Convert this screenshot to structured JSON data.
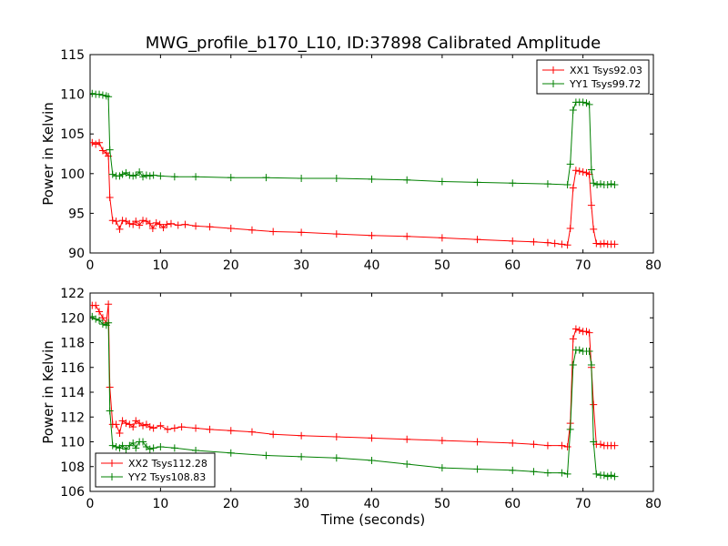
{
  "figure": {
    "title": "MWG_profile_b170_L10, ID:37898 Calibrated Amplitude",
    "xlabel": "Time (seconds)"
  },
  "chart_data": [
    {
      "type": "line",
      "ylabel": "Power in Kelvin",
      "xlim": [
        0,
        80
      ],
      "ylim": [
        90,
        115
      ],
      "xticks": [
        "0",
        "10",
        "20",
        "30",
        "40",
        "50",
        "60",
        "70",
        "80"
      ],
      "yticks": [
        "90",
        "95",
        "100",
        "105",
        "110",
        "115"
      ],
      "grid": false,
      "legend_position": "top-right",
      "series": [
        {
          "name": "XX1 Tsys92.03",
          "color": "#ff0000",
          "marker": "+",
          "points": [
            [
              0.3,
              103.9
            ],
            [
              0.8,
              103.7
            ],
            [
              1.3,
              103.9
            ],
            [
              1.8,
              102.9
            ],
            [
              2.3,
              102.6
            ],
            [
              2.6,
              102.2
            ],
            [
              2.8,
              97.0
            ],
            [
              3.2,
              94.1
            ],
            [
              3.7,
              94.0
            ],
            [
              4.2,
              93.0
            ],
            [
              4.6,
              94.1
            ],
            [
              5.1,
              94.0
            ],
            [
              5.6,
              93.7
            ],
            [
              6.1,
              93.6
            ],
            [
              6.5,
              94.0
            ],
            [
              7.0,
              93.5
            ],
            [
              7.5,
              94.1
            ],
            [
              8.0,
              94.0
            ],
            [
              8.5,
              93.7
            ],
            [
              8.9,
              93.1
            ],
            [
              9.4,
              93.8
            ],
            [
              9.9,
              93.6
            ],
            [
              10.4,
              93.2
            ],
            [
              10.9,
              93.6
            ],
            [
              11.5,
              93.7
            ],
            [
              12.5,
              93.5
            ],
            [
              13.5,
              93.6
            ],
            [
              15,
              93.4
            ],
            [
              17,
              93.3
            ],
            [
              20,
              93.1
            ],
            [
              23,
              92.9
            ],
            [
              26,
              92.7
            ],
            [
              30,
              92.6
            ],
            [
              35,
              92.4
            ],
            [
              40,
              92.2
            ],
            [
              45,
              92.1
            ],
            [
              50,
              91.9
            ],
            [
              55,
              91.7
            ],
            [
              60,
              91.5
            ],
            [
              63,
              91.4
            ],
            [
              65,
              91.3
            ],
            [
              66,
              91.2
            ],
            [
              67,
              91.1
            ],
            [
              67.8,
              91.0
            ],
            [
              68.2,
              93.1
            ],
            [
              68.6,
              98.2
            ],
            [
              69.0,
              100.4
            ],
            [
              69.5,
              100.3
            ],
            [
              70.0,
              100.2
            ],
            [
              70.5,
              100.1
            ],
            [
              70.9,
              99.9
            ],
            [
              71.2,
              96.0
            ],
            [
              71.5,
              93.0
            ],
            [
              71.9,
              91.2
            ],
            [
              72.5,
              91.1
            ],
            [
              73.0,
              91.2
            ],
            [
              73.5,
              91.1
            ],
            [
              74.0,
              91.1
            ],
            [
              74.5,
              91.1
            ]
          ]
        },
        {
          "name": "YY1 Tsys99.72",
          "color": "#008000",
          "marker": "+",
          "points": [
            [
              0.3,
              110.1
            ],
            [
              0.8,
              110.0
            ],
            [
              1.3,
              110.0
            ],
            [
              1.8,
              109.9
            ],
            [
              2.3,
              109.8
            ],
            [
              2.6,
              109.7
            ],
            [
              2.8,
              103.0
            ],
            [
              3.2,
              99.9
            ],
            [
              3.7,
              99.7
            ],
            [
              4.2,
              99.7
            ],
            [
              4.6,
              99.9
            ],
            [
              5.1,
              100.1
            ],
            [
              5.6,
              99.8
            ],
            [
              6.1,
              99.7
            ],
            [
              6.5,
              99.8
            ],
            [
              7.0,
              100.2
            ],
            [
              7.5,
              99.6
            ],
            [
              8.0,
              99.8
            ],
            [
              8.5,
              99.7
            ],
            [
              9,
              99.8
            ],
            [
              10,
              99.7
            ],
            [
              12,
              99.6
            ],
            [
              15,
              99.6
            ],
            [
              20,
              99.5
            ],
            [
              25,
              99.5
            ],
            [
              30,
              99.4
            ],
            [
              35,
              99.4
            ],
            [
              40,
              99.3
            ],
            [
              45,
              99.2
            ],
            [
              50,
              99.0
            ],
            [
              55,
              98.9
            ],
            [
              60,
              98.8
            ],
            [
              65,
              98.7
            ],
            [
              67.8,
              98.6
            ],
            [
              68.2,
              101.2
            ],
            [
              68.6,
              108.0
            ],
            [
              69.0,
              109.0
            ],
            [
              69.5,
              109.0
            ],
            [
              70.0,
              109.0
            ],
            [
              70.5,
              108.9
            ],
            [
              70.9,
              108.7
            ],
            [
              71.2,
              100.5
            ],
            [
              71.5,
              98.8
            ],
            [
              72.0,
              98.6
            ],
            [
              72.5,
              98.7
            ],
            [
              73.0,
              98.6
            ],
            [
              73.5,
              98.6
            ],
            [
              74.0,
              98.7
            ],
            [
              74.5,
              98.6
            ]
          ]
        }
      ]
    },
    {
      "type": "line",
      "ylabel": "Power in Kelvin",
      "xlim": [
        0,
        80
      ],
      "ylim": [
        106,
        122
      ],
      "xticks": [
        "0",
        "10",
        "20",
        "30",
        "40",
        "50",
        "60",
        "70",
        "80"
      ],
      "yticks": [
        "106",
        "108",
        "110",
        "112",
        "114",
        "116",
        "118",
        "120",
        "122"
      ],
      "grid": false,
      "legend_position": "bottom-left",
      "series": [
        {
          "name": "XX2 Tsys112.28",
          "color": "#ff0000",
          "marker": "+",
          "points": [
            [
              0.3,
              121.0
            ],
            [
              0.8,
              121.0
            ],
            [
              1.3,
              120.5
            ],
            [
              1.8,
              120.0
            ],
            [
              2.3,
              119.6
            ],
            [
              2.6,
              121.1
            ],
            [
              2.8,
              114.4
            ],
            [
              3.2,
              111.4
            ],
            [
              3.7,
              111.4
            ],
            [
              4.2,
              110.7
            ],
            [
              4.6,
              111.7
            ],
            [
              5.1,
              111.5
            ],
            [
              5.6,
              111.4
            ],
            [
              6.1,
              111.2
            ],
            [
              6.5,
              111.7
            ],
            [
              7.0,
              111.5
            ],
            [
              7.5,
              111.3
            ],
            [
              8.0,
              111.4
            ],
            [
              8.5,
              111.2
            ],
            [
              9,
              111.1
            ],
            [
              10,
              111.3
            ],
            [
              11,
              111.0
            ],
            [
              12,
              111.1
            ],
            [
              13,
              111.2
            ],
            [
              15,
              111.1
            ],
            [
              17,
              111.0
            ],
            [
              20,
              110.9
            ],
            [
              23,
              110.8
            ],
            [
              26,
              110.6
            ],
            [
              30,
              110.5
            ],
            [
              35,
              110.4
            ],
            [
              40,
              110.3
            ],
            [
              45,
              110.2
            ],
            [
              50,
              110.1
            ],
            [
              55,
              110.0
            ],
            [
              60,
              109.9
            ],
            [
              63,
              109.8
            ],
            [
              65,
              109.7
            ],
            [
              67,
              109.7
            ],
            [
              67.8,
              109.6
            ],
            [
              68.2,
              111.5
            ],
            [
              68.6,
              118.3
            ],
            [
              69.0,
              119.1
            ],
            [
              69.5,
              119.0
            ],
            [
              70.0,
              118.9
            ],
            [
              70.5,
              118.9
            ],
            [
              70.9,
              118.8
            ],
            [
              71.2,
              116.0
            ],
            [
              71.5,
              113.0
            ],
            [
              71.9,
              109.8
            ],
            [
              72.5,
              109.8
            ],
            [
              73.0,
              109.7
            ],
            [
              73.5,
              109.7
            ],
            [
              74.0,
              109.7
            ],
            [
              74.5,
              109.7
            ]
          ]
        },
        {
          "name": "YY2 Tsys108.83",
          "color": "#008000",
          "marker": "+",
          "points": [
            [
              0.3,
              120.1
            ],
            [
              0.8,
              119.9
            ],
            [
              1.3,
              119.8
            ],
            [
              1.8,
              119.5
            ],
            [
              2.3,
              119.4
            ],
            [
              2.6,
              119.6
            ],
            [
              2.8,
              112.5
            ],
            [
              3.2,
              109.7
            ],
            [
              3.7,
              109.6
            ],
            [
              4.2,
              109.5
            ],
            [
              4.6,
              109.7
            ],
            [
              5.1,
              109.4
            ],
            [
              5.6,
              109.7
            ],
            [
              6.1,
              109.9
            ],
            [
              6.5,
              109.5
            ],
            [
              7.0,
              110.0
            ],
            [
              7.5,
              110.0
            ],
            [
              8.0,
              109.6
            ],
            [
              8.5,
              109.4
            ],
            [
              9,
              109.5
            ],
            [
              10,
              109.6
            ],
            [
              12,
              109.5
            ],
            [
              15,
              109.3
            ],
            [
              20,
              109.1
            ],
            [
              25,
              108.9
            ],
            [
              30,
              108.8
            ],
            [
              35,
              108.7
            ],
            [
              40,
              108.5
            ],
            [
              45,
              108.2
            ],
            [
              50,
              107.9
            ],
            [
              55,
              107.8
            ],
            [
              60,
              107.7
            ],
            [
              63,
              107.6
            ],
            [
              65,
              107.5
            ],
            [
              67,
              107.5
            ],
            [
              67.8,
              107.4
            ],
            [
              68.2,
              111.0
            ],
            [
              68.6,
              116.2
            ],
            [
              69.0,
              117.4
            ],
            [
              69.5,
              117.4
            ],
            [
              70.0,
              117.3
            ],
            [
              70.5,
              117.3
            ],
            [
              70.9,
              117.3
            ],
            [
              71.2,
              116.2
            ],
            [
              71.5,
              110.0
            ],
            [
              71.9,
              107.4
            ],
            [
              72.5,
              107.3
            ],
            [
              73.0,
              107.3
            ],
            [
              73.5,
              107.2
            ],
            [
              74.0,
              107.3
            ],
            [
              74.5,
              107.2
            ]
          ]
        }
      ]
    }
  ]
}
